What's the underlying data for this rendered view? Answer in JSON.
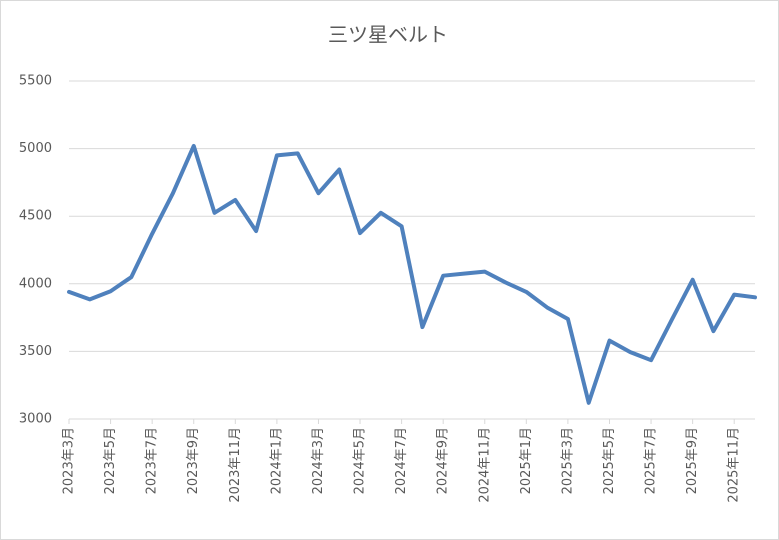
{
  "chart_data": {
    "type": "line",
    "title": "三ツ星ベルト",
    "categories": [
      "2023年3月",
      null,
      "2023年5月",
      null,
      "2023年7月",
      null,
      "2023年9月",
      null,
      "2023年11月",
      null,
      "2024年1月",
      null,
      "2024年3月",
      null,
      "2024年5月",
      null,
      "2024年7月",
      null,
      "2024年9月",
      null,
      "2024年11月",
      null,
      "2025年1月",
      null,
      "2025年3月",
      null,
      "2025年5月",
      null,
      "2025年7月",
      null,
      "2025年9月",
      null,
      "2025年11月",
      null
    ],
    "values": [
      3940,
      3885,
      3945,
      4050,
      4370,
      4670,
      5020,
      4525,
      4620,
      4390,
      4950,
      4965,
      4670,
      4845,
      4375,
      4525,
      4425,
      3680,
      4060,
      4075,
      4090,
      4010,
      3940,
      3825,
      3740,
      3120,
      3580,
      3495,
      3435,
      3735,
      4030,
      3650,
      3920,
      3900
    ],
    "color": "#4f81bd",
    "ylim": [
      3000,
      5500
    ],
    "yticks": [
      3000,
      3500,
      4000,
      4500,
      5000,
      5500
    ],
    "grid": true
  }
}
